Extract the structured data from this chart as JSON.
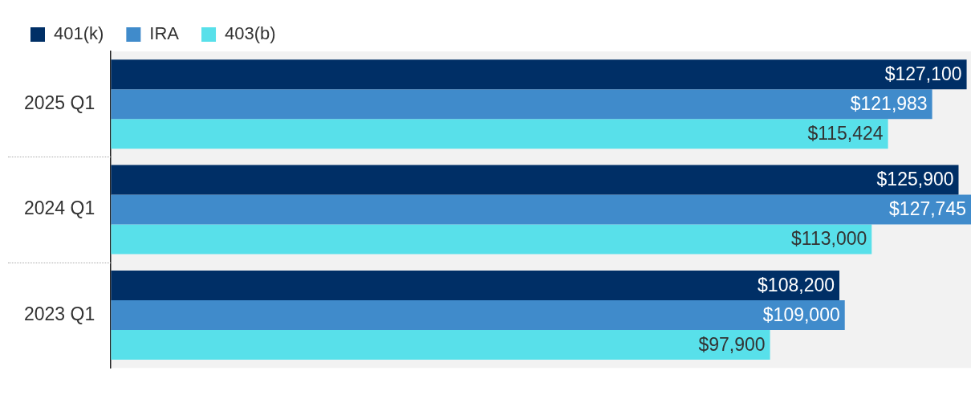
{
  "chart_data": {
    "type": "bar",
    "orientation": "horizontal",
    "categories": [
      "2025 Q1",
      "2024 Q1",
      "2023 Q1"
    ],
    "series": [
      {
        "name": "401(k)",
        "color": "#002f66",
        "values": [
          127100,
          125900,
          108200
        ],
        "value_labels": [
          "$127,100",
          "$125,900",
          "$108,200"
        ]
      },
      {
        "name": "IRA",
        "color": "#408bcb",
        "values": [
          121983,
          127745,
          109000
        ],
        "value_labels": [
          "$121,983",
          "$127,745",
          "$109,000"
        ]
      },
      {
        "name": "403(b)",
        "color": "#58e0ea",
        "values": [
          115424,
          113000,
          97900
        ],
        "value_labels": [
          "$115,424",
          "$113,000",
          "$97,900"
        ]
      }
    ],
    "legend": "top left"
  }
}
